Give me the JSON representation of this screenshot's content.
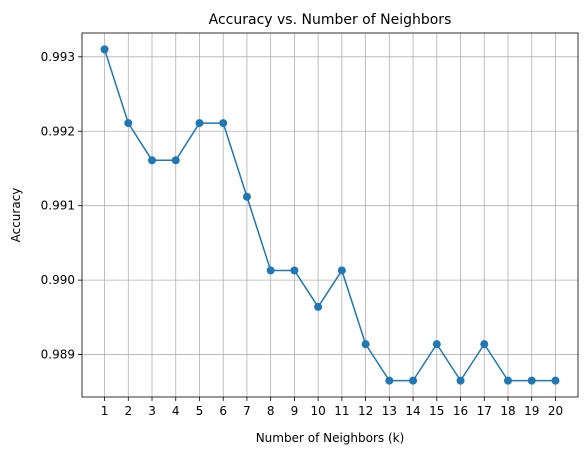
{
  "chart_data": {
    "type": "line",
    "title": "Accuracy vs. Number of Neighbors",
    "xlabel": "Number of Neighbors (k)",
    "ylabel": "Accuracy",
    "x": [
      1,
      2,
      3,
      4,
      5,
      6,
      7,
      8,
      9,
      10,
      11,
      12,
      13,
      14,
      15,
      16,
      17,
      18,
      19,
      20
    ],
    "series": [
      {
        "values": [
          0.9931,
          0.99211,
          0.99161,
          0.99161,
          0.99211,
          0.99211,
          0.99112,
          0.99013,
          0.99013,
          0.98964,
          0.99013,
          0.98914,
          0.98865,
          0.98865,
          0.98914,
          0.98865,
          0.98914,
          0.98865,
          0.98865,
          0.98865
        ],
        "color": "#1f77b4",
        "marker": "circle"
      }
    ],
    "xlim": [
      0.05,
      20.95
    ],
    "ylim": [
      0.98843,
      0.99332
    ],
    "yticks": [
      0.989,
      0.99,
      0.991,
      0.992,
      0.993
    ],
    "ytick_labels": [
      "0.989",
      "0.990",
      "0.991",
      "0.992",
      "0.993"
    ],
    "xticks": [
      1,
      2,
      3,
      4,
      5,
      6,
      7,
      8,
      9,
      10,
      11,
      12,
      13,
      14,
      15,
      16,
      17,
      18,
      19,
      20
    ],
    "xtick_labels": [
      "1",
      "2",
      "3",
      "4",
      "5",
      "6",
      "7",
      "8",
      "9",
      "10",
      "11",
      "12",
      "13",
      "14",
      "15",
      "16",
      "17",
      "18",
      "19",
      "20"
    ],
    "grid": true,
    "legend": "none"
  }
}
